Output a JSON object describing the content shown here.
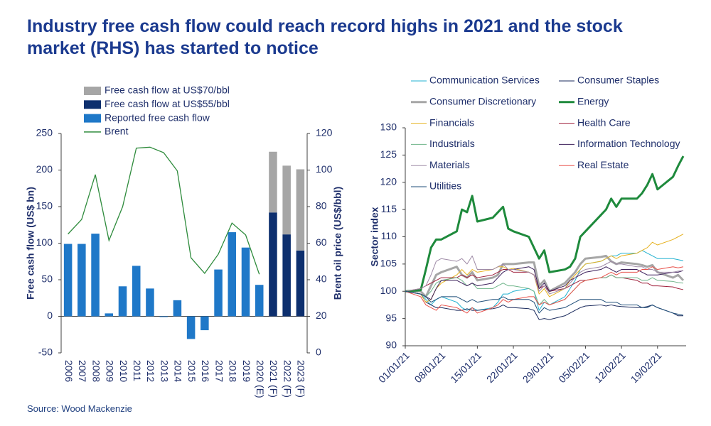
{
  "title": "Industry free cash flow could reach record highs in 2021 and the stock market (RHS) has started to notice",
  "source": "Source: Wood Mackenzie",
  "chart_data": [
    {
      "type": "bar",
      "y_label": "Free cash flow (US$ bn)",
      "y2_label": "Brent oil price (US$/bbl)",
      "categories": [
        "2006",
        "2007",
        "2008",
        "2009",
        "2010",
        "2011",
        "2012",
        "2013",
        "2014",
        "2015",
        "2016",
        "2017",
        "2018",
        "2019",
        "2020 (E)",
        "2021 (F)",
        "2022 (F)",
        "2023 (F)"
      ],
      "ylim": [
        -50,
        250
      ],
      "yticks": [
        -50,
        0,
        50,
        100,
        150,
        200,
        250
      ],
      "y2lim": [
        0,
        120
      ],
      "y2ticks": [
        0,
        20,
        40,
        60,
        80,
        100,
        120
      ],
      "series": [
        {
          "name": "Free cash flow at US$70/bbl",
          "color": "#a6a6a6",
          "values": [
            null,
            null,
            null,
            null,
            null,
            null,
            null,
            null,
            null,
            null,
            null,
            null,
            null,
            null,
            null,
            83,
            94,
            111
          ]
        },
        {
          "name": "Free cash flow at US$55/bbl",
          "color": "#0d2f6e",
          "values": [
            null,
            null,
            null,
            null,
            null,
            null,
            null,
            null,
            null,
            null,
            null,
            null,
            null,
            null,
            null,
            142,
            112,
            90
          ]
        },
        {
          "name": "Reported free cash flow",
          "color": "#1f78c8",
          "values": [
            99,
            99,
            113,
            4,
            41,
            69,
            38,
            -1,
            22,
            -31,
            -19,
            64,
            115,
            94,
            43,
            null,
            null,
            null
          ]
        },
        {
          "name": "Brent",
          "type": "line",
          "axis": "y2",
          "color": "#2e8b3c",
          "values": [
            65,
            73,
            97.5,
            61.5,
            80,
            112,
            112.5,
            109.5,
            99.5,
            52,
            43.5,
            54,
            71,
            64.5,
            43,
            null,
            null,
            null
          ]
        }
      ]
    },
    {
      "type": "line",
      "y_label": "Sector index",
      "x": [
        "01/01/21",
        "04/01/21",
        "05/01/21",
        "06/01/21",
        "07/01/21",
        "08/01/21",
        "11/01/21",
        "12/01/21",
        "13/01/21",
        "14/01/21",
        "15/01/21",
        "18/01/21",
        "19/01/21",
        "20/01/21",
        "21/01/21",
        "22/01/21",
        "25/01/21",
        "26/01/21",
        "27/01/21",
        "28/01/21",
        "29/01/21",
        "01/02/21",
        "02/02/21",
        "03/02/21",
        "04/02/21",
        "05/02/21",
        "08/02/21",
        "09/02/21",
        "10/02/21",
        "11/02/21",
        "12/02/21",
        "15/02/21",
        "16/02/21",
        "17/02/21",
        "18/02/21",
        "19/02/21",
        "22/02/21",
        "23/02/21",
        "24/02/21"
      ],
      "xlim": [
        "01/01/21",
        "24/02/21"
      ],
      "xticks": [
        "01/01/21",
        "08/01/21",
        "15/01/21",
        "22/01/21",
        "29/01/21",
        "05/02/21",
        "12/02/21",
        "19/02/21"
      ],
      "ylim": [
        90,
        130
      ],
      "yticks": [
        90,
        95,
        100,
        105,
        110,
        115,
        120,
        125,
        130
      ],
      "series": [
        {
          "name": "Communication Services",
          "color": "#22b2d0",
          "line_width": 1,
          "values": [
            100,
            99.5,
            98.5,
            97.5,
            98.5,
            99,
            98,
            97,
            96.5,
            97,
            96.5,
            97,
            98,
            99.5,
            99.5,
            100,
            100.5,
            100,
            96.5,
            98,
            97.5,
            99,
            100.5,
            102,
            104,
            105,
            105.5,
            106,
            106.5,
            106.5,
            107,
            107,
            107.5,
            107,
            106.5,
            106,
            106,
            105.8,
            105.6
          ]
        },
        {
          "name": "Consumer Staples",
          "color": "#1a2a5c",
          "line_width": 1,
          "values": [
            100,
            99.5,
            98,
            97.5,
            97,
            97,
            96.5,
            96.5,
            96.8,
            96.5,
            96.5,
            96.8,
            97,
            97.5,
            97,
            97,
            96.8,
            96.5,
            94.8,
            95,
            94.8,
            95.5,
            96,
            96.5,
            97,
            97.3,
            97.5,
            97.3,
            97.5,
            97.3,
            97.2,
            97,
            97,
            97.2,
            97.5,
            97,
            96,
            95.5,
            95.5
          ]
        },
        {
          "name": "Consumer Discretionary",
          "color": "#a6a6a6",
          "line_width": 3,
          "values": [
            100,
            100,
            99,
            101,
            103,
            103.5,
            104.5,
            103,
            102.5,
            103.5,
            102,
            102.5,
            103,
            105,
            105,
            105,
            105.3,
            105.3,
            101,
            102,
            100,
            101.5,
            102.5,
            103.5,
            105,
            106,
            106.3,
            106.5,
            105.5,
            105,
            105.3,
            105,
            104.8,
            104.5,
            104.8,
            103.5,
            102.5,
            103,
            102
          ]
        },
        {
          "name": "Energy",
          "color": "#1e8a3c",
          "line_width": 3,
          "values": [
            100,
            100.2,
            104,
            108,
            109.5,
            109.5,
            111,
            115,
            114.5,
            117.5,
            112.8,
            113.5,
            114.5,
            115.5,
            111.5,
            111,
            110,
            108,
            106,
            107.5,
            103.5,
            104,
            104.5,
            106,
            110,
            111,
            114,
            115,
            117,
            115.5,
            117,
            117,
            118,
            119.5,
            121.5,
            118.7,
            121,
            123,
            124.8
          ]
        },
        {
          "name": "Financials",
          "color": "#e6b222",
          "line_width": 1,
          "values": [
            100,
            99.5,
            98,
            98.5,
            100.5,
            101.5,
            103,
            104,
            103,
            104,
            103.5,
            104,
            104.5,
            104.5,
            104,
            104.2,
            103.5,
            103,
            99.5,
            100.5,
            99,
            100.5,
            102,
            103,
            104,
            105,
            105.5,
            106,
            106.5,
            106,
            106.5,
            107,
            107.5,
            108,
            109,
            108.5,
            109.5,
            110,
            110.5
          ]
        },
        {
          "name": "Health Care",
          "color": "#a0213c",
          "line_width": 1,
          "values": [
            100,
            100.5,
            101,
            101.5,
            102,
            102.5,
            102.5,
            103,
            102.5,
            103,
            102.5,
            103,
            103.5,
            104,
            104,
            103.5,
            103.5,
            103,
            100.5,
            101,
            100,
            100.5,
            101,
            101.5,
            102,
            102,
            102.5,
            102.5,
            103,
            102.5,
            102.5,
            102,
            101.5,
            101.5,
            101,
            101,
            100.8,
            100.5,
            100.3
          ]
        },
        {
          "name": "Industrials",
          "color": "#6fb58a",
          "line_width": 1,
          "values": [
            100,
            99.5,
            99,
            100,
            101.5,
            102,
            102.5,
            102,
            101,
            101.5,
            100.5,
            100.5,
            101,
            101.5,
            101,
            101,
            100.5,
            100,
            97.5,
            98.5,
            97.5,
            98.5,
            99.5,
            100.5,
            101.5,
            102,
            102.5,
            102.5,
            103,
            102.5,
            102.5,
            102.5,
            102,
            102,
            102.5,
            102,
            101.8,
            101.6,
            101.5
          ]
        },
        {
          "name": "Information Technology",
          "color": "#3b1e5a",
          "line_width": 1,
          "values": [
            100,
            99.5,
            99,
            98.5,
            100.5,
            102,
            102,
            101.5,
            101,
            101.5,
            101,
            101.5,
            102.5,
            103.5,
            104,
            104,
            104.5,
            104,
            100.5,
            101.5,
            100,
            101,
            102,
            102.5,
            103,
            103.5,
            104,
            104.5,
            104,
            103.5,
            104,
            104,
            103.5,
            103,
            103,
            103,
            103.5,
            103.5,
            103.8
          ]
        },
        {
          "name": "Materials",
          "color": "#9e8aa6",
          "line_width": 1,
          "values": [
            100,
            100.5,
            101,
            103,
            105.5,
            106,
            105.5,
            106,
            105,
            106.5,
            104,
            104,
            104.5,
            105,
            104,
            104,
            103.5,
            103,
            100,
            101,
            99.5,
            100.5,
            101.5,
            102.5,
            103.5,
            104,
            104.5,
            105,
            105.5,
            105,
            105,
            104.5,
            104.5,
            104,
            104,
            103.5,
            103.5,
            103.7,
            103.8
          ]
        },
        {
          "name": "Real Estate",
          "color": "#e8514a",
          "line_width": 1,
          "values": [
            100,
            99,
            97.5,
            97,
            96.5,
            97.5,
            97,
            96.5,
            96,
            97,
            96,
            97,
            97.5,
            98.5,
            98,
            98.5,
            99,
            99,
            97.5,
            98,
            97.5,
            98.5,
            99.5,
            100.5,
            101.5,
            102,
            102.5,
            103,
            103.5,
            103,
            103.5,
            103.5,
            104,
            104,
            104.5,
            104,
            104.5,
            104.3,
            104.5
          ]
        },
        {
          "name": "Utilities",
          "color": "#1f4e79",
          "line_width": 1,
          "values": [
            100,
            99.5,
            99,
            98,
            98.5,
            99,
            99,
            98.5,
            98,
            98.5,
            98,
            98.5,
            98.5,
            99,
            98.5,
            98.5,
            98.5,
            98,
            96,
            97,
            96.5,
            97,
            97.5,
            98,
            98.5,
            98.5,
            98.5,
            98,
            98,
            98,
            97.5,
            97.5,
            97,
            97,
            97.5,
            97,
            96,
            95.8,
            95.6
          ]
        }
      ]
    }
  ]
}
